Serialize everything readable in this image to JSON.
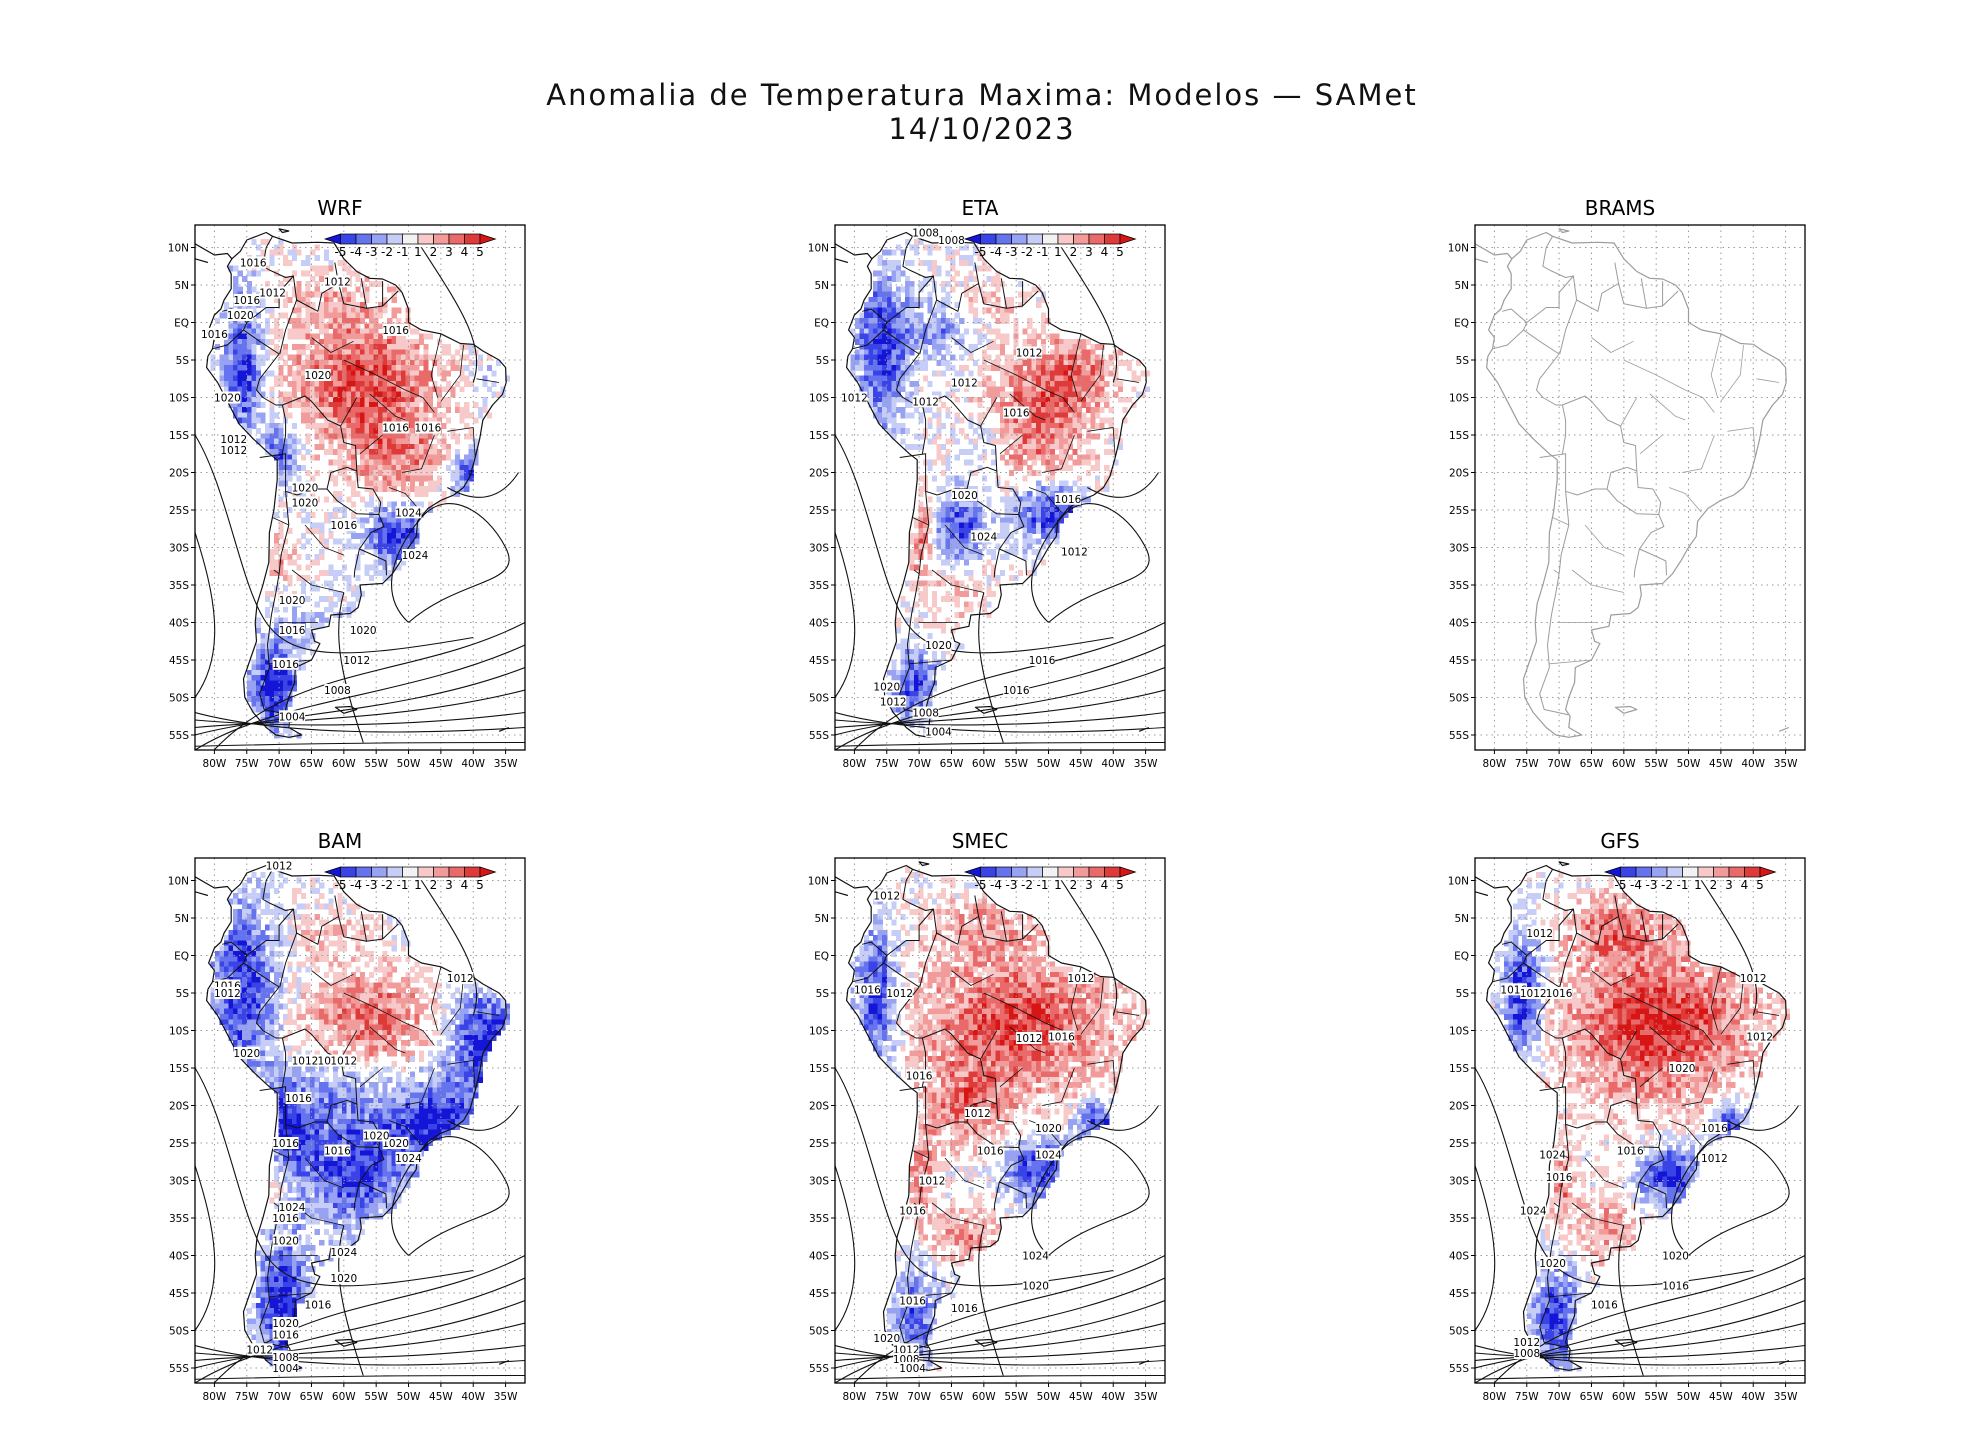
{
  "title_line1": "Anomalia de Temperatura Maxima: Modelos — SAMet",
  "title_line2": "14/10/2023",
  "lat_labels": [
    "10N",
    "5N",
    "EQ",
    "5S",
    "10S",
    "15S",
    "20S",
    "25S",
    "30S",
    "35S",
    "40S",
    "45S",
    "50S",
    "55S"
  ],
  "lon_labels": [
    "80W",
    "75W",
    "70W",
    "65W",
    "60W",
    "55W",
    "50W",
    "45W",
    "40W",
    "35W"
  ],
  "colorbar": {
    "labels": [
      "-5",
      "-4",
      "-3",
      "-2",
      "-1",
      "1",
      "2",
      "3",
      "4",
      "5"
    ],
    "colors": [
      "#1515d8",
      "#3a44e6",
      "#6673ee",
      "#97a2f2",
      "#c6cdf7",
      "#f2f2f2",
      "#f7c9c9",
      "#f29b9b",
      "#ea6a6a",
      "#df3a3a",
      "#d81515"
    ]
  },
  "panels": [
    {
      "name": "WRF",
      "has_data": true,
      "isobars": [
        "1016",
        "1012",
        "1016",
        "1020",
        "1012",
        "1016",
        "1020",
        "1020",
        "1012",
        "1012",
        "1016",
        "1016",
        "1020",
        "1016",
        "1020",
        "1024",
        "1016",
        "1024",
        "1020",
        "1020",
        "1016",
        "1016",
        "1012",
        "1008",
        "1004"
      ]
    },
    {
      "name": "ETA",
      "has_data": true,
      "isobars": [
        "1008",
        "1008",
        "1012",
        "1012",
        "1012",
        "1016",
        "1012",
        "1020",
        "1016",
        "1024",
        "1012",
        "1020",
        "1016",
        "1016",
        "1020",
        "1012",
        "1008",
        "1004"
      ]
    },
    {
      "name": "BRAMS",
      "has_data": false,
      "isobars": []
    },
    {
      "name": "BAM",
      "has_data": true,
      "isobars": [
        "1012",
        "1012",
        "1016",
        "1012",
        "1016",
        "1020",
        "1012",
        "1012",
        "1016",
        "1016",
        "1020",
        "1016",
        "1020",
        "1024",
        "1024",
        "1016",
        "1020",
        "1024",
        "1020",
        "1016",
        "1020",
        "1016",
        "1012",
        "1008",
        "1004"
      ]
    },
    {
      "name": "SMEC",
      "has_data": true,
      "isobars": [
        "1012",
        "1016",
        "1012",
        "1012",
        "1012",
        "1016",
        "1016",
        "1012",
        "1020",
        "1016",
        "1024",
        "1012",
        "1016",
        "1024",
        "1020",
        "1016",
        "1016",
        "1020",
        "1012",
        "1008",
        "1004"
      ]
    },
    {
      "name": "GFS",
      "has_data": true,
      "isobars": [
        "1012",
        "1016",
        "1012",
        "1012",
        "1016",
        "1012",
        "1020",
        "1016",
        "1016",
        "1024",
        "1012",
        "1016",
        "1024",
        "1020",
        "1020",
        "1016",
        "1016",
        "1012",
        "1008"
      ]
    }
  ]
}
